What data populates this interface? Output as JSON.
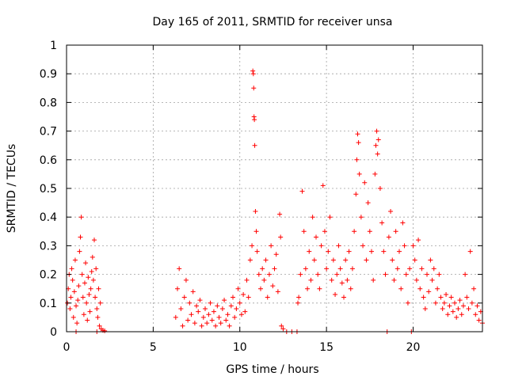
{
  "chart_data": {
    "type": "scatter",
    "title": "Day 165 of 2011, SRMTID for receiver unsa",
    "xlabel": "GPS time / hours",
    "ylabel": "SRMTID / TECUs",
    "xlim": [
      0,
      24
    ],
    "ylim": [
      0,
      1
    ],
    "xticks": [
      0,
      5,
      10,
      15,
      20
    ],
    "yticks": [
      0,
      0.1,
      0.2,
      0.3,
      0.4,
      0.5,
      0.6,
      0.7,
      0.8,
      0.9,
      1
    ],
    "grid": true,
    "marker": "+",
    "series": [
      {
        "name": "SRMTID",
        "color": "#ff0000",
        "points": [
          [
            0.05,
            0.1
          ],
          [
            0.1,
            0.15
          ],
          [
            0.15,
            0.2
          ],
          [
            0.2,
            0.08
          ],
          [
            0.25,
            0.12
          ],
          [
            0.3,
            0.22
          ],
          [
            0.35,
            0.18
          ],
          [
            0.4,
            0.05
          ],
          [
            0.45,
            0.14
          ],
          [
            0.5,
            0.25
          ],
          [
            0.55,
            0.09
          ],
          [
            0.6,
            0.03
          ],
          [
            0.65,
            0.11
          ],
          [
            0.7,
            0.16
          ],
          [
            0.75,
            0.28
          ],
          [
            0.8,
            0.33
          ],
          [
            0.85,
            0.4
          ],
          [
            0.9,
            0.2
          ],
          [
            0.95,
            0.12
          ],
          [
            1.0,
            0.06
          ],
          [
            1.05,
            0.17
          ],
          [
            1.1,
            0.24
          ],
          [
            1.15,
            0.1
          ],
          [
            1.2,
            0.04
          ],
          [
            1.25,
            0.19
          ],
          [
            1.3,
            0.13
          ],
          [
            1.35,
            0.07
          ],
          [
            1.4,
            0.15
          ],
          [
            1.45,
            0.21
          ],
          [
            1.5,
            0.26
          ],
          [
            1.55,
            0.18
          ],
          [
            1.6,
            0.32
          ],
          [
            1.65,
            0.12
          ],
          [
            1.7,
            0.22
          ],
          [
            1.75,
            0.08
          ],
          [
            1.8,
            0.05
          ],
          [
            1.85,
            0.15
          ],
          [
            1.9,
            0.02
          ],
          [
            1.95,
            0.1
          ],
          [
            2.0,
            0.01
          ],
          [
            2.1,
            0.005
          ],
          [
            2.2,
            0.003
          ],
          [
            0.55,
            0.0
          ],
          [
            1.75,
            0.0
          ],
          [
            6.3,
            0.05
          ],
          [
            6.4,
            0.15
          ],
          [
            6.5,
            0.22
          ],
          [
            6.6,
            0.08
          ],
          [
            6.7,
            0.02
          ],
          [
            6.8,
            0.12
          ],
          [
            6.9,
            0.18
          ],
          [
            7.0,
            0.04
          ],
          [
            7.1,
            0.1
          ],
          [
            7.2,
            0.06
          ],
          [
            7.3,
            0.14
          ],
          [
            7.4,
            0.03
          ],
          [
            7.5,
            0.09
          ],
          [
            7.6,
            0.07
          ],
          [
            7.7,
            0.11
          ],
          [
            7.8,
            0.02
          ],
          [
            7.9,
            0.05
          ],
          [
            8.0,
            0.08
          ],
          [
            8.1,
            0.03
          ],
          [
            8.2,
            0.06
          ],
          [
            8.3,
            0.1
          ],
          [
            8.4,
            0.04
          ],
          [
            8.5,
            0.07
          ],
          [
            8.6,
            0.02
          ],
          [
            8.7,
            0.09
          ],
          [
            8.8,
            0.05
          ],
          [
            8.9,
            0.03
          ],
          [
            9.0,
            0.08
          ],
          [
            9.1,
            0.11
          ],
          [
            9.2,
            0.04
          ],
          [
            9.3,
            0.06
          ],
          [
            9.4,
            0.02
          ],
          [
            9.5,
            0.09
          ],
          [
            9.6,
            0.12
          ],
          [
            9.7,
            0.05
          ],
          [
            9.8,
            0.08
          ],
          [
            9.9,
            0.15
          ],
          [
            10.0,
            0.1
          ],
          [
            10.1,
            0.06
          ],
          [
            10.2,
            0.13
          ],
          [
            10.3,
            0.07
          ],
          [
            10.4,
            0.18
          ],
          [
            10.5,
            0.12
          ],
          [
            10.6,
            0.25
          ],
          [
            10.7,
            0.3
          ],
          [
            10.75,
            0.91
          ],
          [
            10.78,
            0.9
          ],
          [
            10.8,
            0.85
          ],
          [
            10.82,
            0.75
          ],
          [
            10.84,
            0.74
          ],
          [
            10.86,
            0.65
          ],
          [
            10.9,
            0.42
          ],
          [
            10.95,
            0.35
          ],
          [
            11.0,
            0.28
          ],
          [
            11.1,
            0.2
          ],
          [
            11.2,
            0.15
          ],
          [
            11.3,
            0.22
          ],
          [
            11.4,
            0.18
          ],
          [
            11.5,
            0.25
          ],
          [
            11.6,
            0.12
          ],
          [
            11.7,
            0.2
          ],
          [
            11.8,
            0.3
          ],
          [
            11.9,
            0.16
          ],
          [
            12.0,
            0.22
          ],
          [
            12.1,
            0.27
          ],
          [
            12.2,
            0.14
          ],
          [
            12.3,
            0.41
          ],
          [
            12.35,
            0.33
          ],
          [
            12.4,
            0.02
          ],
          [
            12.5,
            0.01
          ],
          [
            12.7,
            0.0
          ],
          [
            13.0,
            0.0
          ],
          [
            13.3,
            0.0
          ],
          [
            13.35,
            0.1
          ],
          [
            13.4,
            0.12
          ],
          [
            13.5,
            0.2
          ],
          [
            13.6,
            0.49
          ],
          [
            13.7,
            0.35
          ],
          [
            13.8,
            0.22
          ],
          [
            13.9,
            0.15
          ],
          [
            14.0,
            0.28
          ],
          [
            14.1,
            0.18
          ],
          [
            14.2,
            0.4
          ],
          [
            14.3,
            0.25
          ],
          [
            14.4,
            0.33
          ],
          [
            14.5,
            0.2
          ],
          [
            14.6,
            0.15
          ],
          [
            14.7,
            0.3
          ],
          [
            14.8,
            0.51
          ],
          [
            14.9,
            0.35
          ],
          [
            15.0,
            0.22
          ],
          [
            15.1,
            0.28
          ],
          [
            15.2,
            0.4
          ],
          [
            15.3,
            0.18
          ],
          [
            15.4,
            0.25
          ],
          [
            15.5,
            0.13
          ],
          [
            15.6,
            0.2
          ],
          [
            15.7,
            0.3
          ],
          [
            15.8,
            0.22
          ],
          [
            15.9,
            0.17
          ],
          [
            16.0,
            0.12
          ],
          [
            16.1,
            0.25
          ],
          [
            16.2,
            0.18
          ],
          [
            16.3,
            0.28
          ],
          [
            16.4,
            0.15
          ],
          [
            16.5,
            0.22
          ],
          [
            16.6,
            0.35
          ],
          [
            16.7,
            0.48
          ],
          [
            16.75,
            0.6
          ],
          [
            16.8,
            0.69
          ],
          [
            16.85,
            0.66
          ],
          [
            16.9,
            0.55
          ],
          [
            17.0,
            0.4
          ],
          [
            17.1,
            0.3
          ],
          [
            17.2,
            0.52
          ],
          [
            17.3,
            0.25
          ],
          [
            17.4,
            0.45
          ],
          [
            17.5,
            0.35
          ],
          [
            17.6,
            0.28
          ],
          [
            17.7,
            0.18
          ],
          [
            17.8,
            0.55
          ],
          [
            17.85,
            0.65
          ],
          [
            17.9,
            0.7
          ],
          [
            17.95,
            0.62
          ],
          [
            18.0,
            0.67
          ],
          [
            18.1,
            0.5
          ],
          [
            18.2,
            0.38
          ],
          [
            18.3,
            0.28
          ],
          [
            18.4,
            0.2
          ],
          [
            18.5,
            0.0
          ],
          [
            18.6,
            0.33
          ],
          [
            18.7,
            0.42
          ],
          [
            18.8,
            0.25
          ],
          [
            18.9,
            0.18
          ],
          [
            19.0,
            0.35
          ],
          [
            19.1,
            0.22
          ],
          [
            19.2,
            0.28
          ],
          [
            19.3,
            0.15
          ],
          [
            19.4,
            0.38
          ],
          [
            19.5,
            0.3
          ],
          [
            19.6,
            0.2
          ],
          [
            19.7,
            0.1
          ],
          [
            19.8,
            0.22
          ],
          [
            19.9,
            0.0
          ],
          [
            20.0,
            0.3
          ],
          [
            20.1,
            0.25
          ],
          [
            20.2,
            0.18
          ],
          [
            20.3,
            0.32
          ],
          [
            20.4,
            0.15
          ],
          [
            20.5,
            0.22
          ],
          [
            20.6,
            0.12
          ],
          [
            20.7,
            0.08
          ],
          [
            20.8,
            0.2
          ],
          [
            20.9,
            0.14
          ],
          [
            21.0,
            0.25
          ],
          [
            21.1,
            0.18
          ],
          [
            21.2,
            0.22
          ],
          [
            21.3,
            0.1
          ],
          [
            21.4,
            0.15
          ],
          [
            21.5,
            0.2
          ],
          [
            21.6,
            0.12
          ],
          [
            21.7,
            0.08
          ],
          [
            21.8,
            0.1
          ],
          [
            21.9,
            0.13
          ],
          [
            22.0,
            0.06
          ],
          [
            22.1,
            0.09
          ],
          [
            22.2,
            0.12
          ],
          [
            22.3,
            0.07
          ],
          [
            22.4,
            0.1
          ],
          [
            22.5,
            0.05
          ],
          [
            22.6,
            0.08
          ],
          [
            22.7,
            0.11
          ],
          [
            22.8,
            0.06
          ],
          [
            22.9,
            0.09
          ],
          [
            23.0,
            0.2
          ],
          [
            23.1,
            0.12
          ],
          [
            23.2,
            0.08
          ],
          [
            23.3,
            0.28
          ],
          [
            23.4,
            0.1
          ],
          [
            23.5,
            0.15
          ],
          [
            23.6,
            0.06
          ],
          [
            23.7,
            0.09
          ],
          [
            23.8,
            0.04
          ],
          [
            23.9,
            0.07
          ],
          [
            24.0,
            0.03
          ]
        ]
      }
    ]
  }
}
